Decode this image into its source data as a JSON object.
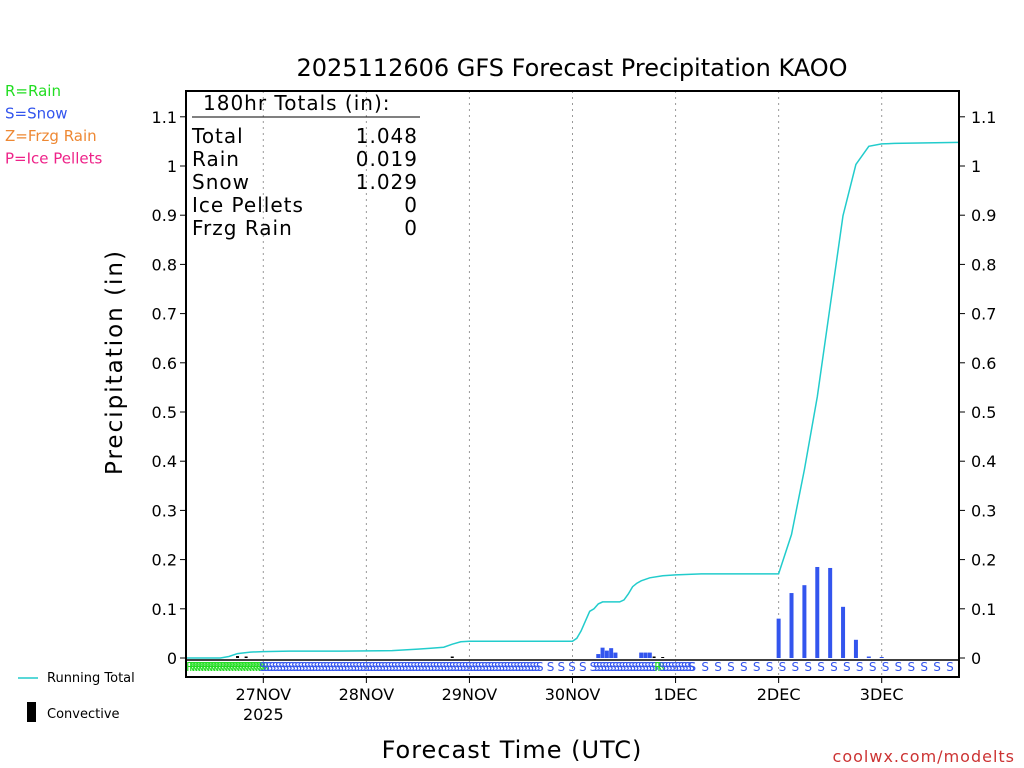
{
  "chart_data": {
    "type": "bar+line",
    "title": "2025112606 GFS Forecast Precipitation KAOO",
    "ylabel": "Precipitation (in)",
    "xlabel": "Forecast Time (UTC)",
    "ylim": [
      0,
      1.15
    ],
    "xlim_hours_from_init": [
      0,
      180
    ],
    "y_ticks": [
      0,
      0.1,
      0.2,
      0.3,
      0.4,
      0.5,
      0.6,
      0.7,
      0.8,
      0.9,
      1,
      1.1
    ],
    "y_tick_labels": [
      "0",
      "0.1",
      "0.2",
      "0.3",
      "0.4",
      "0.5",
      "0.6",
      "0.7",
      "0.8",
      "0.9",
      "1",
      "1.1"
    ],
    "x_ticks": [
      {
        "hour": 18,
        "label": "27NOV",
        "sublabel": "2025"
      },
      {
        "hour": 42,
        "label": "28NOV",
        "sublabel": ""
      },
      {
        "hour": 66,
        "label": "29NOV",
        "sublabel": ""
      },
      {
        "hour": 90,
        "label": "30NOV",
        "sublabel": ""
      },
      {
        "hour": 114,
        "label": "1DEC",
        "sublabel": ""
      },
      {
        "hour": 138,
        "label": "2DEC",
        "sublabel": ""
      },
      {
        "hour": 162,
        "label": "3DEC",
        "sublabel": ""
      }
    ],
    "legend_types": [
      {
        "text": "R=Rain",
        "color": "#22dd22"
      },
      {
        "text": "S=Snow",
        "color": "#3355ee"
      },
      {
        "text": "Z=Frzg Rain",
        "color": "#ee8833"
      },
      {
        "text": "P=Ice Pellets",
        "color": "#ee2288"
      }
    ],
    "legend_series": [
      {
        "text": "Running Total",
        "color": "#22cccc",
        "kind": "line"
      },
      {
        "text": "Convective",
        "color": "#000000",
        "kind": "bar"
      }
    ],
    "totals": {
      "header": "180hr Totals (in):",
      "rows": [
        {
          "label": "Total",
          "value": "1.048"
        },
        {
          "label": "Rain",
          "value": "0.019"
        },
        {
          "label": "Snow",
          "value": "1.029"
        },
        {
          "label": "Ice Pellets",
          "value": "0"
        },
        {
          "label": "Frzg Rain",
          "value": "0"
        }
      ]
    },
    "running_total": {
      "color": "#22cccc",
      "hours": [
        0,
        8,
        10,
        12,
        15,
        18,
        24,
        36,
        48,
        54,
        57,
        60,
        62,
        64,
        66,
        90,
        91,
        92,
        93,
        94,
        95,
        96,
        97,
        99,
        101,
        102,
        103,
        104,
        105,
        106,
        107,
        108,
        111,
        114,
        120,
        126,
        132,
        138,
        141,
        144,
        147,
        150,
        153,
        156,
        159,
        162,
        165,
        180
      ],
      "values": [
        0.0,
        0.0,
        0.003,
        0.009,
        0.012,
        0.013,
        0.014,
        0.014,
        0.015,
        0.018,
        0.02,
        0.022,
        0.028,
        0.033,
        0.034,
        0.034,
        0.04,
        0.055,
        0.075,
        0.095,
        0.1,
        0.11,
        0.114,
        0.114,
        0.114,
        0.118,
        0.13,
        0.145,
        0.152,
        0.157,
        0.16,
        0.163,
        0.167,
        0.169,
        0.171,
        0.171,
        0.171,
        0.171,
        0.251,
        0.383,
        0.531,
        0.716,
        0.899,
        1.003,
        1.04,
        1.045,
        1.046,
        1.048
      ]
    },
    "precip_bars": {
      "color": "#3355ee",
      "hours": [
        96,
        97,
        98,
        99,
        100,
        106,
        107,
        108,
        138,
        141,
        144,
        147,
        150,
        153,
        156,
        159,
        162
      ],
      "values": [
        0.008,
        0.021,
        0.015,
        0.02,
        0.011,
        0.011,
        0.011,
        0.011,
        0.08,
        0.132,
        0.148,
        0.185,
        0.183,
        0.104,
        0.037,
        0.003,
        0.002
      ]
    },
    "convective_bars": {
      "color": "#000000",
      "hours": [
        12,
        14,
        62,
        109,
        111
      ],
      "values": [
        0.004,
        0.003,
        0.003,
        0.003,
        0.002
      ]
    },
    "ptype_rows": [
      {
        "color": "#22dd22",
        "char": "R",
        "hours_from": 0,
        "hours_to": 17.5,
        "step": 0.7
      },
      {
        "color": "#3355ee",
        "char": "S",
        "hours_from": 17,
        "hours_to": 82,
        "step": 0.75
      },
      {
        "color": "#3355ee",
        "char": "S",
        "hours_from": 84,
        "hours_to": 94,
        "step": 2.5
      },
      {
        "color": "#3355ee",
        "char": "S",
        "hours_from": 94,
        "hours_to": 109,
        "step": 0.75
      },
      {
        "color": "#22dd22",
        "char": "R",
        "hours_from": 109,
        "hours_to": 110,
        "step": 0.7
      },
      {
        "color": "#3355ee",
        "char": "S",
        "hours_from": 110,
        "hours_to": 117,
        "step": 0.75
      },
      {
        "color": "#3355ee",
        "char": "S",
        "hours_from": 117,
        "hours_to": 180,
        "step": 3
      }
    ],
    "watermark": "coolwx.com/modelts"
  }
}
